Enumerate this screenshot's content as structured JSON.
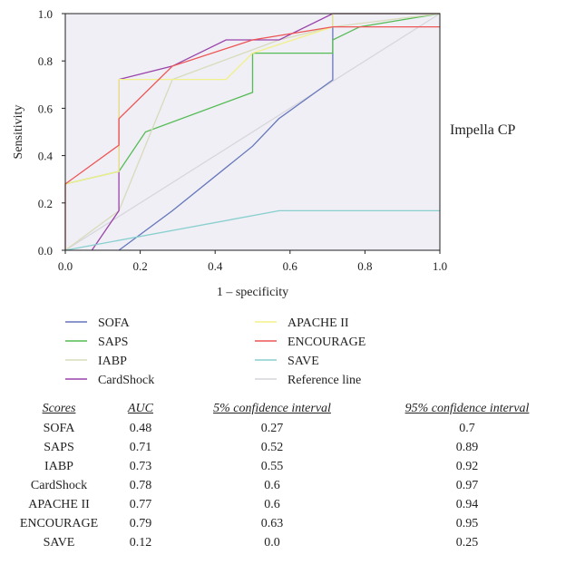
{
  "chart_data": {
    "type": "line",
    "panel_label": "Impella CP",
    "xlabel": "1 – specificity",
    "ylabel": "Sensitivity",
    "xlim": [
      0,
      1
    ],
    "ylim": [
      0,
      1
    ],
    "x_ticks": [
      "0.0",
      "0.2",
      "0.4",
      "0.6",
      "0.8",
      "1.0"
    ],
    "y_ticks": [
      "0.0",
      "0.2",
      "0.4",
      "0.6",
      "0.8",
      "1.0"
    ],
    "grid": false,
    "plot_background": "#efeff5",
    "series": [
      {
        "name": "SOFA",
        "color": "#6677bb",
        "points": [
          [
            0.143,
            0
          ],
          [
            0.286,
            0.167
          ],
          [
            0.5,
            0.44
          ],
          [
            0.57,
            0.556
          ],
          [
            0.714,
            0.72
          ],
          [
            0.714,
            1.0
          ],
          [
            0.857,
            1.0
          ],
          [
            1.0,
            1.0
          ]
        ]
      },
      {
        "name": "SAPS",
        "color": "#55bb55",
        "points": [
          [
            0,
            0.28
          ],
          [
            0.143,
            0.333
          ],
          [
            0.214,
            0.5
          ],
          [
            0.5,
            0.667
          ],
          [
            0.5,
            0.833
          ],
          [
            0.714,
            0.833
          ],
          [
            0.714,
            0.889
          ],
          [
            0.786,
            0.944
          ],
          [
            1.0,
            1.0
          ]
        ]
      },
      {
        "name": "IABP",
        "color": "#d8dbbb",
        "points": [
          [
            0,
            0
          ],
          [
            0.143,
            0.167
          ],
          [
            0.286,
            0.722
          ],
          [
            0.571,
            0.889
          ],
          [
            0.714,
            0.944
          ],
          [
            1.0,
            1.0
          ]
        ]
      },
      {
        "name": "CardShock",
        "color": "#9a44aa",
        "points": [
          [
            0.071,
            0
          ],
          [
            0.143,
            0.167
          ],
          [
            0.143,
            0.722
          ],
          [
            0.286,
            0.778
          ],
          [
            0.429,
            0.889
          ],
          [
            0.571,
            0.889
          ],
          [
            0.714,
            1.0
          ],
          [
            1.0,
            1.0
          ]
        ]
      },
      {
        "name": "APACHE II",
        "color": "#f2f08a",
        "points": [
          [
            0,
            0.28
          ],
          [
            0.143,
            0.333
          ],
          [
            0.143,
            0.722
          ],
          [
            0.429,
            0.722
          ],
          [
            0.5,
            0.833
          ],
          [
            0.714,
            0.944
          ],
          [
            0.714,
            1.0
          ],
          [
            1.0,
            1.0
          ]
        ]
      },
      {
        "name": "ENCOURAGE",
        "color": "#ee5555",
        "points": [
          [
            0,
            0
          ],
          [
            0,
            0.28
          ],
          [
            0.143,
            0.444
          ],
          [
            0.143,
            0.556
          ],
          [
            0.286,
            0.778
          ],
          [
            0.5,
            0.889
          ],
          [
            0.714,
            0.944
          ],
          [
            1.0,
            0.944
          ]
        ]
      },
      {
        "name": "SAVE",
        "color": "#88cfcf",
        "points": [
          [
            0,
            0
          ],
          [
            0.571,
            0.167
          ],
          [
            1.0,
            0.167
          ]
        ]
      },
      {
        "name": "Reference line",
        "color": "#d6d6dc",
        "points": [
          [
            0,
            0
          ],
          [
            1,
            1
          ]
        ]
      }
    ]
  },
  "table": {
    "headers": [
      "Scores",
      "AUC",
      "5% confidence interval",
      "95% confidence interval"
    ],
    "rows": [
      [
        "SOFA",
        "0.48",
        "0.27",
        "0.7"
      ],
      [
        "SAPS",
        "0.71",
        "0.52",
        "0.89"
      ],
      [
        "IABP",
        "0.73",
        "0.55",
        "0.92"
      ],
      [
        "CardShock",
        "0.78",
        "0.6",
        "0.97"
      ],
      [
        "APACHE II",
        "0.77",
        "0.6",
        "0.94"
      ],
      [
        "ENCOURAGE",
        "0.79",
        "0.63",
        "0.95"
      ],
      [
        "SAVE",
        "0.12",
        "0.0",
        "0.25"
      ]
    ]
  }
}
